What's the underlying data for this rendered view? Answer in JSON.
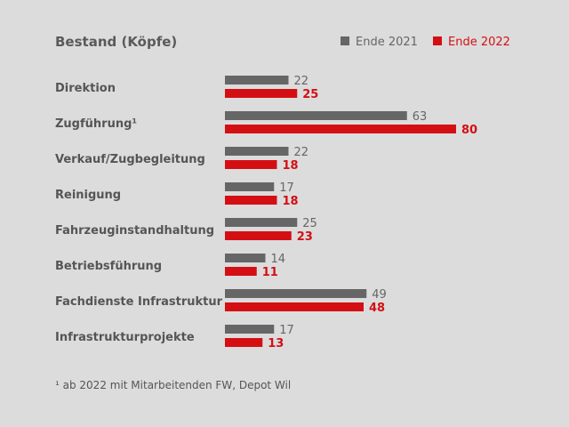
{
  "chart_data": {
    "type": "bar",
    "orientation": "horizontal",
    "title": "Bestand (Köpfe)",
    "categories": [
      "Direktion",
      "Zugführung¹",
      "Verkauf/Zugbegleitung",
      "Reinigung",
      "Fahrzeuginstandhaltung",
      "Betriebsführung",
      "Fachdienste Infrastruktur",
      "Infrastrukturprojekte"
    ],
    "series": [
      {
        "name": "Ende 2021",
        "color": "#666666",
        "values": [
          22,
          63,
          22,
          17,
          25,
          14,
          49,
          17
        ]
      },
      {
        "name": "Ende 2022",
        "color": "#d40f14",
        "values": [
          25,
          80,
          18,
          18,
          23,
          11,
          48,
          13
        ]
      }
    ],
    "xlim": [
      0,
      80
    ],
    "grid": false,
    "legend": "top-right",
    "footnote": "¹ ab 2022 mit Mitarbeitenden FW, Depot Wil"
  }
}
